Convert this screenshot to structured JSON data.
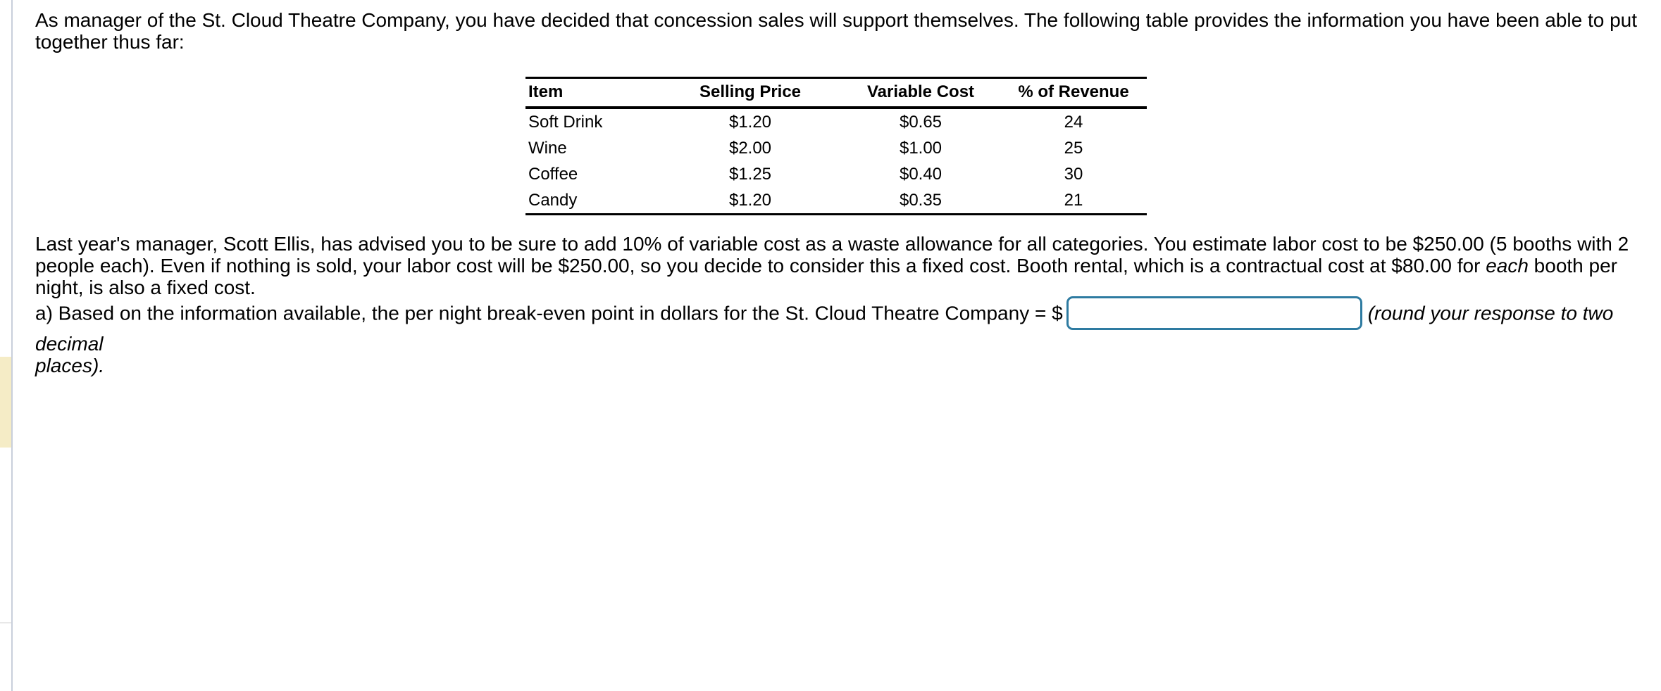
{
  "page": {
    "background": "#ffffff",
    "rail_highlight_color": "#f5ecc6",
    "rail_divider_color": "#e8e8e8",
    "vertical_line_color": "#c9cfdb"
  },
  "paragraph1": "As manager of the St. Cloud Theatre Company, you have decided that concession sales will support themselves. The following table provides the information you have been able to put together thus far:",
  "table": {
    "headers": [
      "Item",
      "Selling Price",
      "Variable Cost",
      "% of Revenue"
    ],
    "rows": [
      [
        "Soft Drink",
        "$1.20",
        "$0.65",
        "24"
      ],
      [
        "Wine",
        "$2.00",
        "$1.00",
        "25"
      ],
      [
        "Coffee",
        "$1.25",
        "$0.40",
        "30"
      ],
      [
        "Candy",
        "$1.20",
        "$0.35",
        "21"
      ]
    ]
  },
  "paragraph2": {
    "part1": "Last year's manager, Scott Ellis, has advised you to be sure to add 10% of variable cost as a waste allowance for all categories. You estimate labor cost to be $250.00 (5 booths with 2 people each). Even if nothing is sold, your labor cost will be $250.00, so you decide to consider this a fixed cost. Booth rental, which is a contractual cost at $80.00 for ",
    "italic": "each",
    "part2": " booth per night, is also a fixed cost."
  },
  "question": {
    "prefix": "a) Based on the information available, the per night break-even point in dollars for the St. Cloud Theatre Company = $",
    "answer_value": "",
    "note_italic_line1": "(round your response to two decimal",
    "note_italic_line2": "places).",
    "input_border_color": "#2e7ba1"
  }
}
